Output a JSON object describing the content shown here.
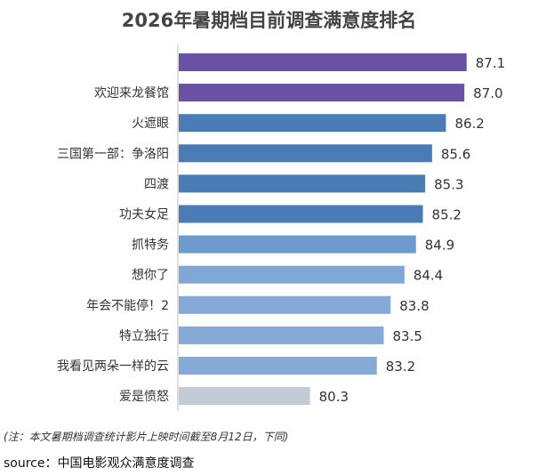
{
  "chart_data": {
    "type": "bar",
    "orientation": "horizontal",
    "title": "2026年暑期档目前调查满意度排名",
    "categories": [
      "",
      "欢迎来龙餐馆",
      "火遮眼",
      "三国第一部：争洛阳",
      "四渡",
      "功夫女足",
      "抓特务",
      "想你了",
      "年会不能停！2",
      "特立独行",
      "我看见两朵一样的云",
      "爱是愤怒"
    ],
    "values": [
      87.1,
      87.0,
      86.2,
      85.6,
      85.3,
      85.2,
      84.9,
      84.4,
      83.8,
      83.5,
      83.2,
      80.3
    ],
    "colors": [
      "#6a51a3",
      "#6a51a3",
      "#4a7bb5",
      "#4a7bb5",
      "#4a7bb5",
      "#4a7bb5",
      "#6d9bce",
      "#7fa6d4",
      "#86aad6",
      "#86aad6",
      "#86aad6",
      "#c3ccd6"
    ],
    "xlabel": "",
    "ylabel": "",
    "grid": false,
    "legend": "none"
  },
  "footer": {
    "note": "(注：本文暑期档调查统计影片上映时间截至8月12日，下同)",
    "source": "source：中国电影观众满意度调查"
  }
}
